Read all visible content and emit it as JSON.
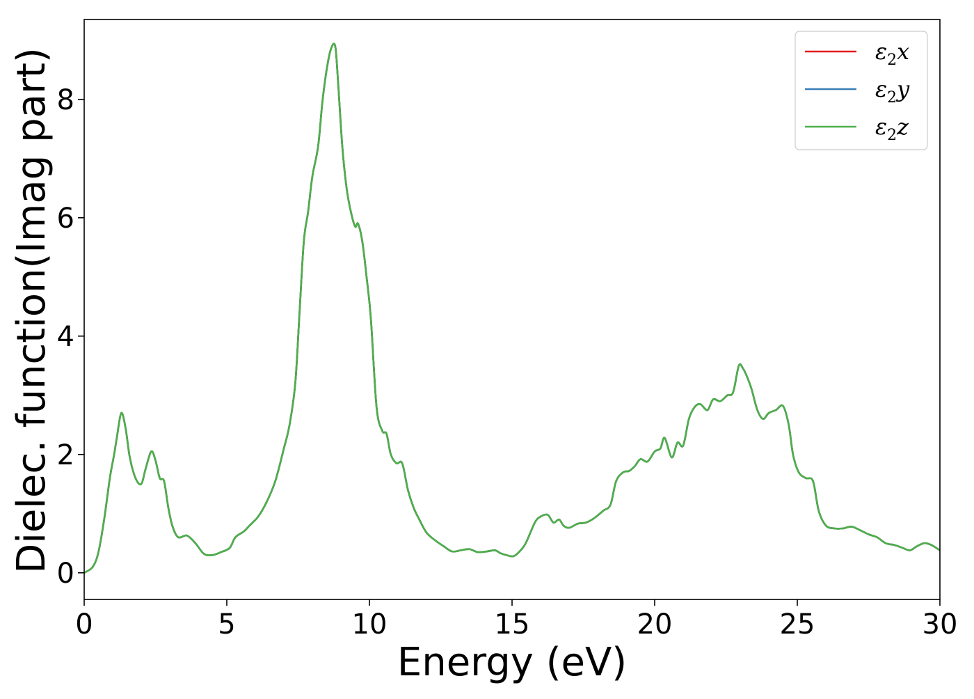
{
  "chart_data": {
    "type": "line",
    "title": "",
    "xlabel": "Energy (eV)",
    "ylabel": "Dielec. function(Imag part)",
    "xlim": [
      0,
      30
    ],
    "ylim": [
      -0.45,
      9.35
    ],
    "x_ticks": [
      0,
      5,
      10,
      15,
      20,
      25,
      30
    ],
    "y_ticks": [
      0,
      2,
      4,
      6,
      8
    ],
    "grid": false,
    "legend_position": "top-right",
    "series": [
      {
        "name": "ε2x",
        "legend": {
          "base": "ε",
          "sub": "2",
          "var": "x"
        },
        "color": "#e41a1c",
        "x": [
          0,
          0.3,
          0.5,
          0.7,
          0.9,
          1.05,
          1.15,
          1.3,
          1.45,
          1.6,
          1.8,
          2.0,
          2.15,
          2.35,
          2.5,
          2.65,
          2.8,
          2.95,
          3.1,
          3.3,
          3.6,
          3.9,
          4.2,
          4.5,
          4.8,
          5.1,
          5.3,
          5.6,
          5.8,
          6.1,
          6.4,
          6.7,
          7.0,
          7.2,
          7.4,
          7.55,
          7.7,
          7.85,
          8.0,
          8.2,
          8.35,
          8.5,
          8.65,
          8.8,
          8.9,
          9.05,
          9.2,
          9.35,
          9.5,
          9.6,
          9.75,
          9.9,
          10.05,
          10.25,
          10.45,
          10.6,
          10.75,
          10.95,
          11.15,
          11.35,
          11.55,
          11.75,
          12.0,
          12.3,
          12.6,
          12.9,
          13.2,
          13.5,
          13.8,
          14.1,
          14.4,
          14.6,
          14.8,
          15.05,
          15.3,
          15.5,
          15.8,
          16.0,
          16.25,
          16.45,
          16.65,
          16.8,
          17.0,
          17.3,
          17.6,
          17.9,
          18.2,
          18.45,
          18.65,
          18.9,
          19.1,
          19.3,
          19.5,
          19.75,
          20.0,
          20.2,
          20.35,
          20.6,
          20.8,
          21.0,
          21.2,
          21.4,
          21.6,
          21.85,
          22.05,
          22.3,
          22.55,
          22.75,
          22.95,
          23.1,
          23.25,
          23.4,
          23.6,
          23.8,
          24.0,
          24.25,
          24.5,
          24.7,
          24.85,
          25.05,
          25.3,
          25.55,
          25.75,
          26.0,
          26.3,
          26.6,
          26.9,
          27.2,
          27.5,
          27.8,
          28.1,
          28.4,
          28.7,
          28.95,
          29.2,
          29.45,
          29.7,
          30.0
        ],
        "y": [
          0.0,
          0.1,
          0.35,
          0.9,
          1.6,
          2.0,
          2.3,
          2.7,
          2.45,
          1.95,
          1.6,
          1.5,
          1.75,
          2.05,
          1.9,
          1.6,
          1.55,
          1.1,
          0.78,
          0.6,
          0.63,
          0.5,
          0.32,
          0.3,
          0.35,
          0.42,
          0.6,
          0.7,
          0.8,
          0.95,
          1.2,
          1.55,
          2.1,
          2.5,
          3.2,
          4.4,
          5.6,
          6.1,
          6.7,
          7.2,
          7.95,
          8.5,
          8.85,
          8.9,
          8.3,
          7.2,
          6.5,
          6.1,
          5.85,
          5.9,
          5.6,
          5.0,
          4.3,
          2.8,
          2.4,
          2.35,
          2.0,
          1.85,
          1.85,
          1.4,
          1.1,
          0.9,
          0.68,
          0.55,
          0.45,
          0.36,
          0.38,
          0.4,
          0.35,
          0.36,
          0.38,
          0.33,
          0.3,
          0.28,
          0.38,
          0.52,
          0.85,
          0.95,
          0.98,
          0.85,
          0.9,
          0.8,
          0.76,
          0.83,
          0.85,
          0.93,
          1.05,
          1.15,
          1.55,
          1.7,
          1.72,
          1.8,
          1.92,
          1.88,
          2.05,
          2.1,
          2.28,
          1.95,
          2.2,
          2.15,
          2.6,
          2.8,
          2.85,
          2.75,
          2.93,
          2.9,
          3.0,
          3.05,
          3.5,
          3.45,
          3.3,
          3.1,
          2.75,
          2.6,
          2.7,
          2.75,
          2.82,
          2.5,
          2.0,
          1.7,
          1.6,
          1.55,
          1.05,
          0.8,
          0.75,
          0.75,
          0.78,
          0.72,
          0.65,
          0.6,
          0.5,
          0.47,
          0.42,
          0.38,
          0.45,
          0.5,
          0.47,
          0.38
        ]
      },
      {
        "name": "ε2y",
        "legend": {
          "base": "ε",
          "sub": "2",
          "var": "y"
        },
        "color": "#377eb8",
        "x": [
          0,
          0.3,
          0.5,
          0.7,
          0.9,
          1.05,
          1.15,
          1.3,
          1.45,
          1.6,
          1.8,
          2.0,
          2.15,
          2.35,
          2.5,
          2.65,
          2.8,
          2.95,
          3.1,
          3.3,
          3.6,
          3.9,
          4.2,
          4.5,
          4.8,
          5.1,
          5.3,
          5.6,
          5.8,
          6.1,
          6.4,
          6.7,
          7.0,
          7.2,
          7.4,
          7.55,
          7.7,
          7.85,
          8.0,
          8.2,
          8.35,
          8.5,
          8.65,
          8.8,
          8.9,
          9.05,
          9.2,
          9.35,
          9.5,
          9.6,
          9.75,
          9.9,
          10.05,
          10.25,
          10.45,
          10.6,
          10.75,
          10.95,
          11.15,
          11.35,
          11.55,
          11.75,
          12.0,
          12.3,
          12.6,
          12.9,
          13.2,
          13.5,
          13.8,
          14.1,
          14.4,
          14.6,
          14.8,
          15.05,
          15.3,
          15.5,
          15.8,
          16.0,
          16.25,
          16.45,
          16.65,
          16.8,
          17.0,
          17.3,
          17.6,
          17.9,
          18.2,
          18.45,
          18.65,
          18.9,
          19.1,
          19.3,
          19.5,
          19.75,
          20.0,
          20.2,
          20.35,
          20.6,
          20.8,
          21.0,
          21.2,
          21.4,
          21.6,
          21.85,
          22.05,
          22.3,
          22.55,
          22.75,
          22.95,
          23.1,
          23.25,
          23.4,
          23.6,
          23.8,
          24.0,
          24.25,
          24.5,
          24.7,
          24.85,
          25.05,
          25.3,
          25.55,
          25.75,
          26.0,
          26.3,
          26.6,
          26.9,
          27.2,
          27.5,
          27.8,
          28.1,
          28.4,
          28.7,
          28.95,
          29.2,
          29.45,
          29.7,
          30.0
        ],
        "y": [
          0.0,
          0.1,
          0.35,
          0.9,
          1.6,
          2.0,
          2.3,
          2.7,
          2.45,
          1.95,
          1.6,
          1.5,
          1.75,
          2.05,
          1.9,
          1.6,
          1.55,
          1.1,
          0.78,
          0.6,
          0.63,
          0.5,
          0.32,
          0.3,
          0.35,
          0.42,
          0.6,
          0.7,
          0.8,
          0.95,
          1.2,
          1.55,
          2.1,
          2.5,
          3.2,
          4.4,
          5.6,
          6.1,
          6.7,
          7.2,
          7.95,
          8.5,
          8.85,
          8.9,
          8.3,
          7.2,
          6.5,
          6.1,
          5.85,
          5.9,
          5.6,
          5.0,
          4.3,
          2.8,
          2.4,
          2.35,
          2.0,
          1.85,
          1.85,
          1.4,
          1.1,
          0.9,
          0.68,
          0.55,
          0.45,
          0.36,
          0.38,
          0.4,
          0.35,
          0.36,
          0.38,
          0.33,
          0.3,
          0.28,
          0.38,
          0.52,
          0.85,
          0.95,
          0.98,
          0.85,
          0.9,
          0.8,
          0.76,
          0.83,
          0.85,
          0.93,
          1.05,
          1.15,
          1.55,
          1.7,
          1.72,
          1.8,
          1.92,
          1.88,
          2.05,
          2.1,
          2.28,
          1.95,
          2.2,
          2.15,
          2.6,
          2.8,
          2.85,
          2.75,
          2.93,
          2.9,
          3.0,
          3.05,
          3.5,
          3.45,
          3.3,
          3.1,
          2.75,
          2.6,
          2.7,
          2.75,
          2.82,
          2.5,
          2.0,
          1.7,
          1.6,
          1.55,
          1.05,
          0.8,
          0.75,
          0.75,
          0.78,
          0.72,
          0.65,
          0.6,
          0.5,
          0.47,
          0.42,
          0.38,
          0.45,
          0.5,
          0.47,
          0.38
        ]
      },
      {
        "name": "ε2z",
        "legend": {
          "base": "ε",
          "sub": "2",
          "var": "z"
        },
        "color": "#4daf4a",
        "x": [
          0,
          0.3,
          0.5,
          0.7,
          0.9,
          1.05,
          1.15,
          1.3,
          1.45,
          1.6,
          1.8,
          2.0,
          2.15,
          2.35,
          2.5,
          2.65,
          2.8,
          2.95,
          3.1,
          3.3,
          3.6,
          3.9,
          4.2,
          4.5,
          4.8,
          5.1,
          5.3,
          5.6,
          5.8,
          6.1,
          6.4,
          6.7,
          7.0,
          7.2,
          7.4,
          7.55,
          7.7,
          7.85,
          8.0,
          8.2,
          8.35,
          8.5,
          8.65,
          8.8,
          8.9,
          9.05,
          9.2,
          9.35,
          9.5,
          9.6,
          9.75,
          9.9,
          10.05,
          10.25,
          10.45,
          10.6,
          10.75,
          10.95,
          11.15,
          11.35,
          11.55,
          11.75,
          12.0,
          12.3,
          12.6,
          12.9,
          13.2,
          13.5,
          13.8,
          14.1,
          14.4,
          14.6,
          14.8,
          15.05,
          15.3,
          15.5,
          15.8,
          16.0,
          16.25,
          16.45,
          16.65,
          16.8,
          17.0,
          17.3,
          17.6,
          17.9,
          18.2,
          18.45,
          18.65,
          18.9,
          19.1,
          19.3,
          19.5,
          19.75,
          20.0,
          20.2,
          20.35,
          20.6,
          20.8,
          21.0,
          21.2,
          21.4,
          21.6,
          21.85,
          22.05,
          22.3,
          22.55,
          22.75,
          22.95,
          23.1,
          23.25,
          23.4,
          23.6,
          23.8,
          24.0,
          24.25,
          24.5,
          24.7,
          24.85,
          25.05,
          25.3,
          25.55,
          25.75,
          26.0,
          26.3,
          26.6,
          26.9,
          27.2,
          27.5,
          27.8,
          28.1,
          28.4,
          28.7,
          28.95,
          29.2,
          29.45,
          29.7,
          30.0
        ],
        "y": [
          0.0,
          0.1,
          0.35,
          0.9,
          1.6,
          2.0,
          2.3,
          2.7,
          2.45,
          1.95,
          1.6,
          1.5,
          1.75,
          2.05,
          1.9,
          1.6,
          1.55,
          1.1,
          0.78,
          0.6,
          0.63,
          0.5,
          0.32,
          0.3,
          0.35,
          0.42,
          0.6,
          0.7,
          0.8,
          0.95,
          1.2,
          1.55,
          2.1,
          2.5,
          3.2,
          4.4,
          5.6,
          6.1,
          6.7,
          7.2,
          7.95,
          8.5,
          8.85,
          8.9,
          8.3,
          7.2,
          6.5,
          6.1,
          5.85,
          5.9,
          5.6,
          5.0,
          4.3,
          2.8,
          2.4,
          2.35,
          2.0,
          1.85,
          1.85,
          1.4,
          1.1,
          0.9,
          0.68,
          0.55,
          0.45,
          0.36,
          0.38,
          0.4,
          0.35,
          0.36,
          0.38,
          0.33,
          0.3,
          0.28,
          0.38,
          0.52,
          0.85,
          0.95,
          0.98,
          0.85,
          0.9,
          0.8,
          0.76,
          0.83,
          0.85,
          0.93,
          1.05,
          1.15,
          1.55,
          1.7,
          1.72,
          1.8,
          1.92,
          1.88,
          2.05,
          2.1,
          2.28,
          1.95,
          2.2,
          2.15,
          2.6,
          2.8,
          2.85,
          2.75,
          2.93,
          2.9,
          3.0,
          3.05,
          3.5,
          3.45,
          3.3,
          3.1,
          2.75,
          2.6,
          2.7,
          2.75,
          2.82,
          2.5,
          2.0,
          1.7,
          1.6,
          1.55,
          1.05,
          0.8,
          0.75,
          0.75,
          0.78,
          0.72,
          0.65,
          0.6,
          0.5,
          0.47,
          0.42,
          0.38,
          0.45,
          0.5,
          0.47,
          0.38
        ]
      }
    ]
  }
}
